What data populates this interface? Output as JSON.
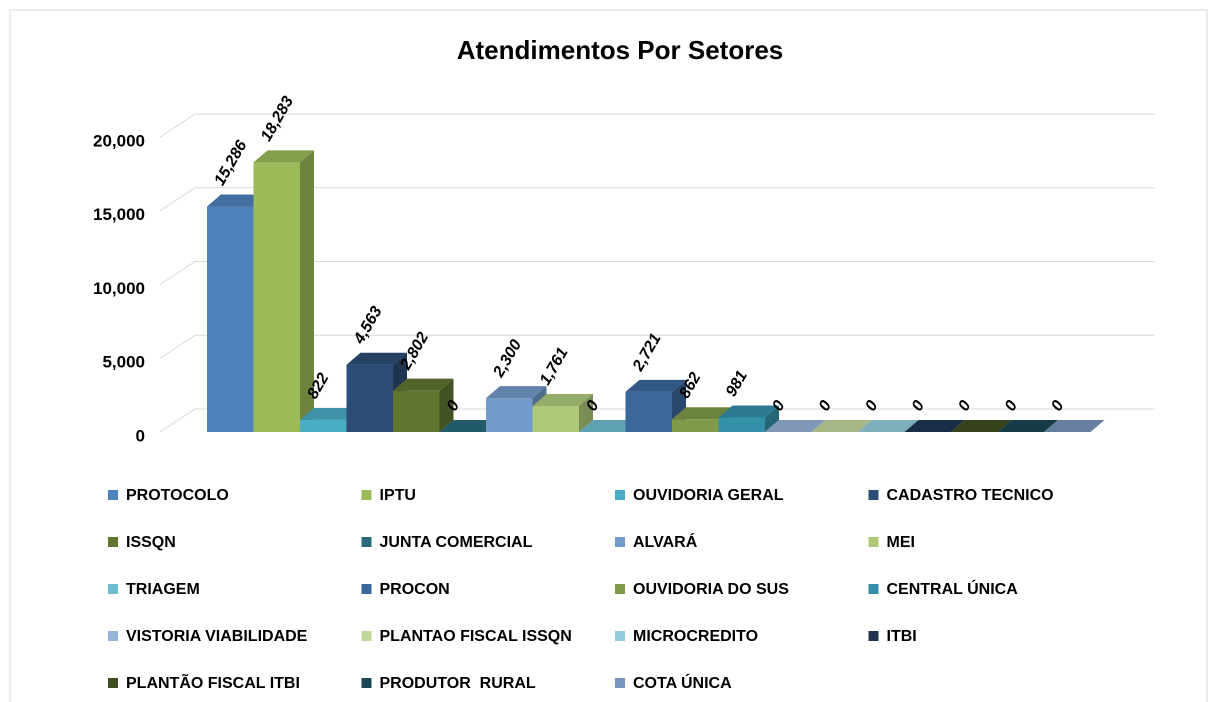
{
  "chart_data": {
    "type": "bar",
    "title": "Atendimentos Por Setores",
    "categories": [
      "PROTOCOLO",
      "IPTU",
      "OUVIDORIA GERAL",
      "CADASTRO TECNICO",
      "ISSQN",
      "JUNTA COMERCIAL",
      "ALVARÁ",
      "MEI",
      "TRIAGEM",
      "PROCON",
      "OUVIDORIA DO SUS",
      "CENTRAL ÚNICA",
      "VISTORIA VIABILIDADE",
      "PLANTAO FISCAL ISSQN",
      "MICROCREDITO",
      "ITBI",
      "PLANTÃO FISCAL ITBI",
      "PRODUTOR  RURAL",
      "COTA ÚNICA"
    ],
    "values": [
      15286,
      18283,
      822,
      4563,
      2802,
      0,
      2300,
      1761,
      0,
      2721,
      862,
      981,
      0,
      0,
      0,
      0,
      0,
      0,
      0
    ],
    "value_labels": [
      "15,286",
      "18,283",
      "822",
      "4,563",
      "2,802",
      "0",
      "2,300",
      "1,761",
      "0",
      "2,721",
      "862",
      "981",
      "0",
      "0",
      "0",
      "0",
      "0",
      "0",
      "0"
    ],
    "colors": [
      "#4f81bd",
      "#9bbb59",
      "#4bacc6",
      "#2c4d75",
      "#5f7530",
      "#276a7c",
      "#729aca",
      "#afc97a",
      "#6fbdd1",
      "#3a679c",
      "#7f9a48",
      "#3490a9",
      "#95b3d7",
      "#c3d69b",
      "#93cddd",
      "#1f3552",
      "#3f4e20",
      "#1a4753",
      "#7895bd"
    ],
    "ylim": [
      0,
      20000
    ],
    "yticks": [
      0,
      {
        "value": 5000,
        "label": "5,000"
      },
      {
        "value": 10000,
        "label": "10,000"
      },
      {
        "value": 15000,
        "label": "15,000"
      },
      {
        "value": 20000,
        "label": "20,000"
      }
    ],
    "grid": true,
    "legend": "bottom"
  }
}
